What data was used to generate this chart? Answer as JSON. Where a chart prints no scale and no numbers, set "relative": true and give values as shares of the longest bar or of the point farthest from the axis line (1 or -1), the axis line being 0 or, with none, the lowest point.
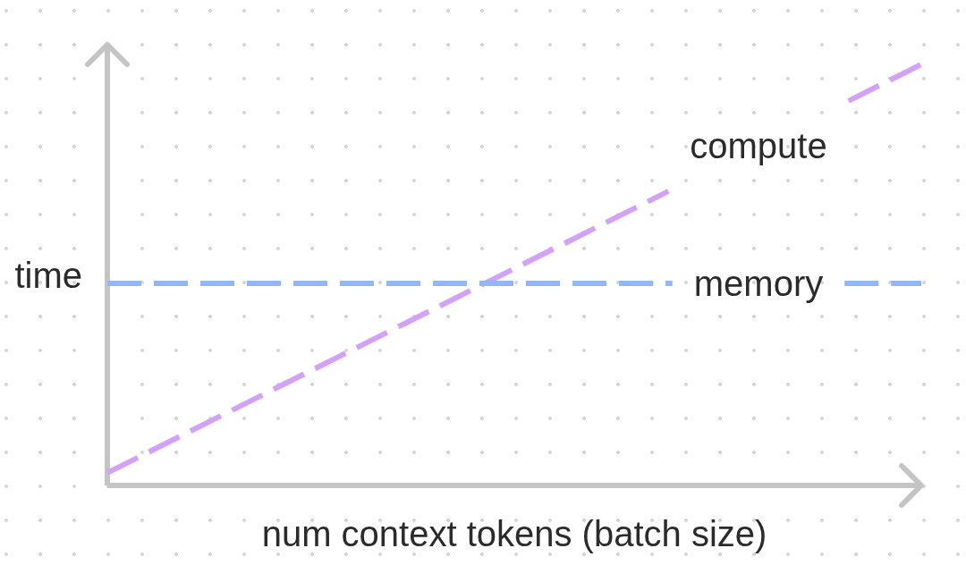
{
  "chart_data": {
    "type": "line",
    "relative": true,
    "line_style": "dashed",
    "xlabel": "num context tokens (batch size)",
    "ylabel": "time",
    "categories": [
      null,
      null
    ],
    "series": [
      {
        "name": "compute",
        "color": "#d4a1f8",
        "values": [
          0.03,
          1
        ]
      },
      {
        "name": "memory",
        "color": "#93b6f8",
        "values": [
          0.48,
          0.48
        ]
      }
    ],
    "ref_lines": [
      {
        "axis": "y",
        "value": 0,
        "color": "#c4c4c4",
        "line_style": "solid"
      }
    ]
  }
}
